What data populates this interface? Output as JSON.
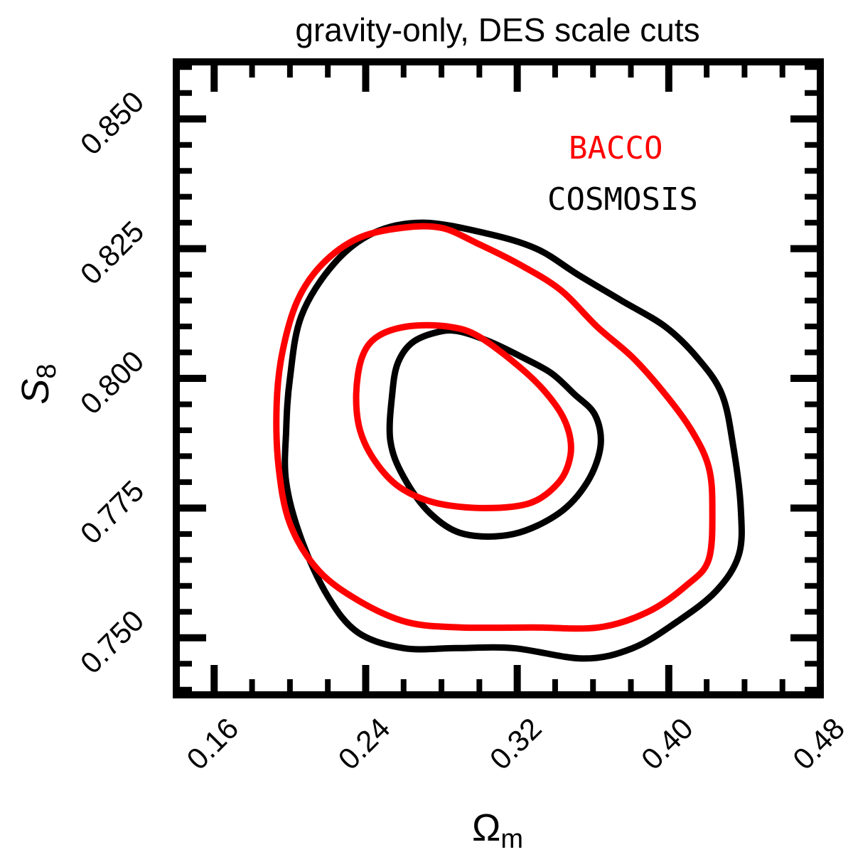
{
  "chart_data": {
    "type": "contour",
    "title": "gravity-only, DES scale cuts",
    "xlabel": {
      "main": "Ω",
      "sub": "m"
    },
    "ylabel": {
      "main": "S",
      "sub": "8"
    },
    "xlim": [
      0.14,
      0.48
    ],
    "ylim": [
      0.739,
      0.861
    ],
    "xticks": [
      {
        "value": 0.16,
        "label": "0.16"
      },
      {
        "value": 0.24,
        "label": "0.24"
      },
      {
        "value": 0.32,
        "label": "0.32"
      },
      {
        "value": 0.4,
        "label": "0.40"
      },
      {
        "value": 0.48,
        "label": "0.48"
      }
    ],
    "yticks": [
      {
        "value": 0.75,
        "label": "0.750"
      },
      {
        "value": 0.775,
        "label": "0.775"
      },
      {
        "value": 0.8,
        "label": "0.800"
      },
      {
        "value": 0.825,
        "label": "0.825"
      },
      {
        "value": 0.85,
        "label": "0.850"
      }
    ],
    "legend_position": "top-right",
    "series": [
      {
        "name": "BACCO",
        "color": "#ff0000",
        "contours": [
          [
            [
              0.262,
              0.81
            ],
            [
              0.246,
              0.808
            ],
            [
              0.238,
              0.804
            ],
            [
              0.235,
              0.797
            ],
            [
              0.237,
              0.79
            ],
            [
              0.245,
              0.784
            ],
            [
              0.258,
              0.779
            ],
            [
              0.277,
              0.776
            ],
            [
              0.303,
              0.775
            ],
            [
              0.327,
              0.776
            ],
            [
              0.342,
              0.78
            ],
            [
              0.348,
              0.785
            ],
            [
              0.347,
              0.79
            ],
            [
              0.34,
              0.795
            ],
            [
              0.325,
              0.801
            ],
            [
              0.3,
              0.808
            ],
            [
              0.283,
              0.81
            ],
            [
              0.262,
              0.81
            ]
          ],
          [
            [
              0.259,
              0.829
            ],
            [
              0.236,
              0.827
            ],
            [
              0.217,
              0.822
            ],
            [
              0.204,
              0.815
            ],
            [
              0.196,
              0.805
            ],
            [
              0.193,
              0.795
            ],
            [
              0.194,
              0.783
            ],
            [
              0.2,
              0.772
            ],
            [
              0.215,
              0.763
            ],
            [
              0.237,
              0.757
            ],
            [
              0.262,
              0.753
            ],
            [
              0.29,
              0.752
            ],
            [
              0.328,
              0.752
            ],
            [
              0.363,
              0.752
            ],
            [
              0.389,
              0.755
            ],
            [
              0.409,
              0.76
            ],
            [
              0.421,
              0.765
            ],
            [
              0.423,
              0.775
            ],
            [
              0.421,
              0.783
            ],
            [
              0.412,
              0.79
            ],
            [
              0.398,
              0.797
            ],
            [
              0.381,
              0.804
            ],
            [
              0.362,
              0.81
            ],
            [
              0.343,
              0.817
            ],
            [
              0.321,
              0.822
            ],
            [
              0.299,
              0.826
            ],
            [
              0.28,
              0.829
            ],
            [
              0.259,
              0.829
            ]
          ]
        ]
      },
      {
        "name": "COSMOSIS",
        "color": "#000000",
        "contours": [
          [
            [
              0.279,
              0.809
            ],
            [
              0.265,
              0.807
            ],
            [
              0.257,
              0.803
            ],
            [
              0.254,
              0.797
            ],
            [
              0.253,
              0.788
            ],
            [
              0.26,
              0.781
            ],
            [
              0.274,
              0.774
            ],
            [
              0.292,
              0.77
            ],
            [
              0.318,
              0.77
            ],
            [
              0.342,
              0.774
            ],
            [
              0.357,
              0.78
            ],
            [
              0.364,
              0.787
            ],
            [
              0.361,
              0.793
            ],
            [
              0.35,
              0.797
            ],
            [
              0.338,
              0.801
            ],
            [
              0.323,
              0.804
            ],
            [
              0.306,
              0.807
            ],
            [
              0.29,
              0.809
            ],
            [
              0.279,
              0.809
            ]
          ],
          [
            [
              0.27,
              0.83
            ],
            [
              0.244,
              0.828
            ],
            [
              0.223,
              0.822
            ],
            [
              0.206,
              0.812
            ],
            [
              0.2,
              0.8
            ],
            [
              0.198,
              0.79
            ],
            [
              0.198,
              0.78
            ],
            [
              0.206,
              0.769
            ],
            [
              0.22,
              0.758
            ],
            [
              0.236,
              0.751
            ],
            [
              0.26,
              0.748
            ],
            [
              0.288,
              0.748
            ],
            [
              0.318,
              0.748
            ],
            [
              0.355,
              0.746
            ],
            [
              0.381,
              0.748
            ],
            [
              0.404,
              0.753
            ],
            [
              0.425,
              0.759
            ],
            [
              0.437,
              0.766
            ],
            [
              0.438,
              0.775
            ],
            [
              0.434,
              0.787
            ],
            [
              0.428,
              0.797
            ],
            [
              0.415,
              0.804
            ],
            [
              0.398,
              0.81
            ],
            [
              0.375,
              0.815
            ],
            [
              0.352,
              0.82
            ],
            [
              0.33,
              0.825
            ],
            [
              0.303,
              0.828
            ],
            [
              0.27,
              0.83
            ]
          ]
        ]
      }
    ]
  }
}
